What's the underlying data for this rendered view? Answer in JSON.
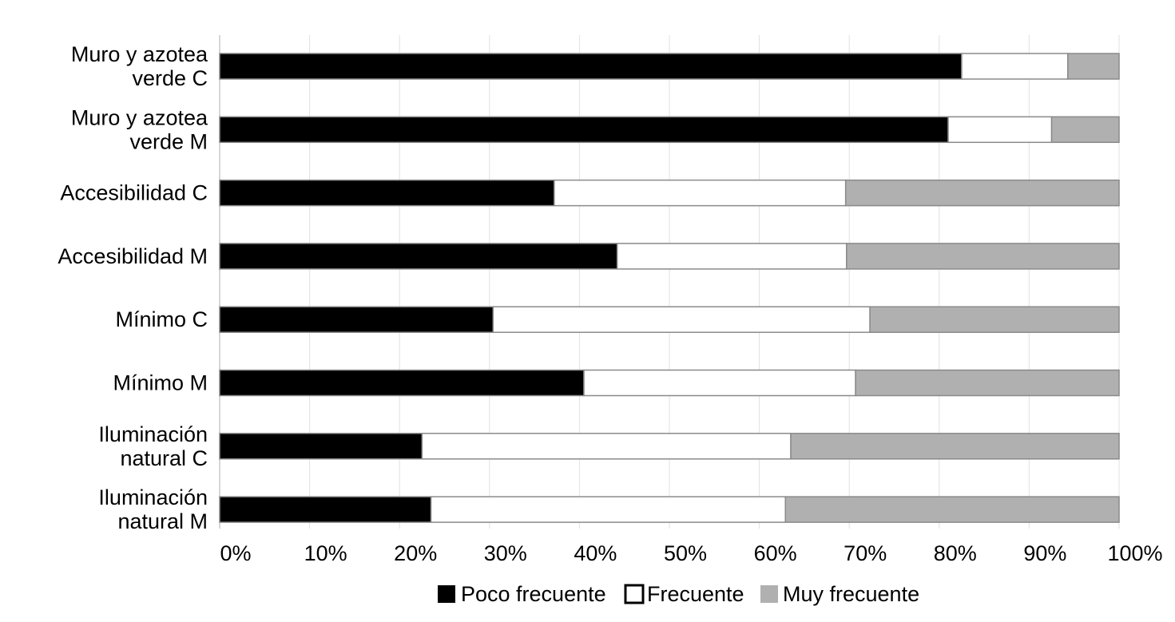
{
  "chart_data": {
    "type": "bar",
    "orientation": "horizontal",
    "stacked": "percent",
    "categories": [
      [
        "Muro y azotea",
        "verde C"
      ],
      [
        "Muro y azotea",
        "verde M"
      ],
      [
        "Accesibilidad C"
      ],
      [
        "Accesibilidad M"
      ],
      [
        "Mínimo C"
      ],
      [
        "Mínimo M"
      ],
      [
        "Iluminación",
        "natural C"
      ],
      [
        "Iluminación",
        "natural M"
      ]
    ],
    "series": [
      {
        "name": "Poco frecuente",
        "color": "#000000",
        "values": [
          82.5,
          81,
          37.2,
          44.2,
          30.4,
          40.5,
          22.5,
          23.5
        ]
      },
      {
        "name": "Frecuente",
        "color": "#ffffff",
        "values": [
          11.8,
          11.5,
          32.4,
          25.5,
          41.9,
          30.2,
          41,
          39.4
        ]
      },
      {
        "name": "Muy frecuente",
        "color": "#b0b0b0",
        "values": [
          5.7,
          7.5,
          30.4,
          30.3,
          27.7,
          29.3,
          36.5,
          37.1
        ]
      }
    ],
    "x_ticks": [
      "0%",
      "10%",
      "20%",
      "30%",
      "40%",
      "50%",
      "60%",
      "70%",
      "80%",
      "90%",
      "100%"
    ],
    "xlim": [
      0,
      100
    ],
    "grid": "vertical",
    "legend": "bottom",
    "title": "",
    "xlabel": "",
    "ylabel": ""
  }
}
